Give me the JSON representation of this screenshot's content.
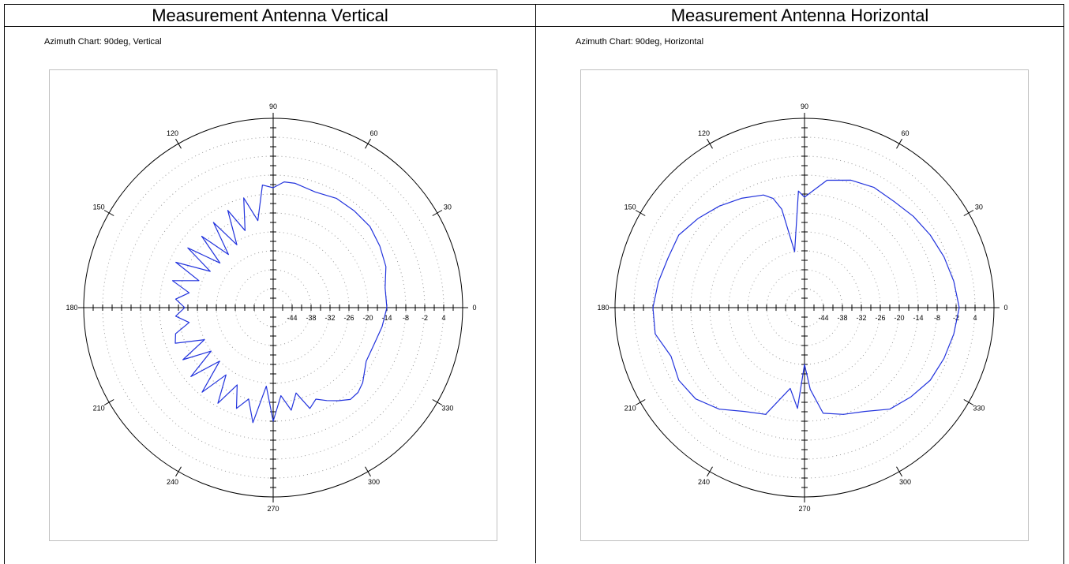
{
  "panels": [
    {
      "header": "Measurement Antenna Vertical",
      "chart_title": "Azimuth Chart: 90deg, Vertical"
    },
    {
      "header": "Measurement Antenna Horizontal",
      "chart_title": "Azimuth Chart: 90deg, Horizontal"
    }
  ],
  "chart_data": [
    {
      "type": "polar-line",
      "title": "Azimuth Chart: 90deg, Vertical",
      "angle_labels": [
        "0",
        "30",
        "60",
        "90",
        "120",
        "150",
        "180",
        "210",
        "240",
        "270",
        "300",
        "330"
      ],
      "radial_tick_labels": [
        "-44",
        "-38",
        "-32",
        "-26",
        "-20",
        "-14",
        "-8",
        "-2",
        "4"
      ],
      "radial_range": [
        -50,
        10
      ],
      "grid": true,
      "line_color": "#2233dd",
      "series": [
        {
          "angles": [
            0,
            10,
            20,
            30,
            40,
            50,
            60,
            70,
            80,
            85,
            90,
            95,
            100,
            105,
            110,
            115,
            120,
            125,
            130,
            135,
            140,
            145,
            150,
            155,
            160,
            165,
            170,
            175,
            180,
            185,
            190,
            195,
            200,
            205,
            210,
            215,
            220,
            225,
            230,
            235,
            240,
            245,
            250,
            255,
            260,
            265,
            270,
            275,
            280,
            285,
            290,
            295,
            300,
            305,
            310,
            315,
            320,
            330,
            340,
            350,
            360
          ],
          "values": [
            -14,
            -14,
            -12,
            -11,
            -10,
            -10,
            -10,
            -11,
            -10,
            -10,
            -12,
            -11,
            -22,
            -14,
            -24,
            -16,
            -27,
            -17,
            -28,
            -18,
            -28,
            -17,
            -27,
            -16,
            -25,
            -17,
            -23,
            -19,
            -22,
            -19,
            -23,
            -18,
            -17,
            -26,
            -17,
            -26,
            -16,
            -26,
            -15,
            -24,
            -15,
            -23,
            -16,
            -20,
            -13,
            -25,
            -14,
            -22,
            -17,
            -22,
            -16,
            -18,
            -16,
            -14,
            -12,
            -12,
            -13,
            -16,
            -16,
            -15,
            -14
          ]
        }
      ]
    },
    {
      "type": "polar-line",
      "title": "Azimuth Chart: 90deg, Horizontal",
      "angle_labels": [
        "0",
        "30",
        "60",
        "90",
        "120",
        "150",
        "180",
        "210",
        "240",
        "270",
        "300",
        "330"
      ],
      "radial_tick_labels": [
        "-44",
        "-38",
        "-32",
        "-26",
        "-20",
        "-14",
        "-8",
        "-2",
        "4"
      ],
      "radial_range": [
        -50,
        10
      ],
      "grid": true,
      "line_color": "#2233dd",
      "series": [
        {
          "angles": [
            0,
            10,
            20,
            30,
            40,
            50,
            60,
            70,
            80,
            88,
            90,
            93,
            100,
            103,
            106,
            110,
            120,
            130,
            140,
            150,
            160,
            170,
            180,
            190,
            200,
            210,
            220,
            230,
            240,
            250,
            260,
            266,
            270,
            274,
            280,
            290,
            300,
            310,
            320,
            330,
            340,
            350,
            360
          ],
          "values": [
            -1,
            -2,
            -3,
            -4,
            -5,
            -6,
            -6,
            -7,
            -9,
            -14,
            -15,
            -13,
            -32,
            -18,
            -14,
            -12,
            -10,
            -8,
            -6,
            -4,
            -4,
            -3,
            -2,
            -2,
            -5,
            -4,
            -5,
            -8,
            -12,
            -14,
            -24,
            -18,
            -32,
            -24,
            -16,
            -14,
            -12,
            -8,
            -6,
            -4,
            -3,
            -2,
            -1
          ]
        }
      ]
    }
  ]
}
